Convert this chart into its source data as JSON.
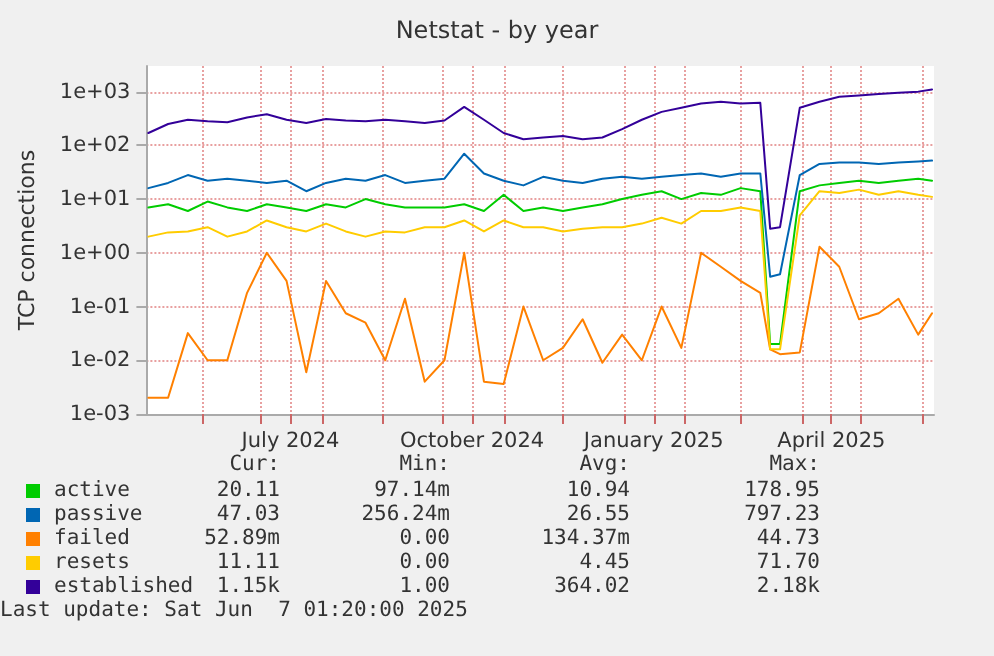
{
  "chart_data": {
    "type": "line",
    "title": "Netstat - by year",
    "ylabel": "TCP connections",
    "x": [
      "2024-05-05",
      "2024-05-15",
      "2024-05-25",
      "2024-06-04",
      "2024-06-14",
      "2024-06-24",
      "2024-07-04",
      "2024-07-14",
      "2024-07-24",
      "2024-08-03",
      "2024-08-13",
      "2024-08-23",
      "2024-09-02",
      "2024-09-12",
      "2024-09-22",
      "2024-10-02",
      "2024-10-12",
      "2024-10-22",
      "2024-11-01",
      "2024-11-11",
      "2024-11-21",
      "2024-12-01",
      "2024-12-11",
      "2024-12-21",
      "2024-12-31",
      "2025-01-10",
      "2025-01-20",
      "2025-01-30",
      "2025-02-09",
      "2025-02-19",
      "2025-03-01",
      "2025-03-11",
      "2025-03-16",
      "2025-03-21",
      "2025-03-31",
      "2025-04-10",
      "2025-04-20",
      "2025-04-30",
      "2025-05-10",
      "2025-05-20",
      "2025-05-30",
      "2025-06-06"
    ],
    "series": [
      {
        "name": "active",
        "color": "#00cc00",
        "values": [
          7,
          8,
          6,
          9,
          7,
          6,
          8,
          7,
          6,
          8,
          7,
          10,
          8,
          7,
          7,
          7,
          8,
          6,
          12,
          6,
          7,
          6,
          7,
          8,
          10,
          12,
          14,
          10,
          13,
          12,
          16,
          14,
          0.02,
          0.02,
          14,
          18,
          20,
          22,
          20,
          22,
          24,
          22
        ]
      },
      {
        "name": "passive",
        "color": "#0066b3",
        "values": [
          16,
          20,
          28,
          22,
          24,
          22,
          20,
          22,
          14,
          20,
          24,
          22,
          28,
          20,
          22,
          24,
          70,
          30,
          22,
          18,
          26,
          22,
          20,
          24,
          26,
          24,
          26,
          28,
          30,
          26,
          30,
          30,
          0.36,
          0.4,
          28,
          45,
          48,
          48,
          45,
          48,
          50,
          52
        ]
      },
      {
        "name": "failed",
        "color": "#ff8000",
        "values": [
          0.002,
          0.002,
          0.032,
          0.01,
          0.01,
          0.18,
          1,
          0.3,
          0.006,
          0.3,
          0.075,
          0.05,
          0.01,
          0.14,
          0.004,
          0.01,
          1,
          0.004,
          0.0036,
          0.1,
          0.01,
          0.017,
          0.058,
          0.009,
          0.03,
          0.01,
          0.1,
          0.017,
          1,
          0.55,
          0.3,
          0.18,
          0.016,
          0.013,
          0.014,
          1.3,
          0.55,
          0.058,
          0.075,
          0.14,
          0.03,
          0.075
        ]
      },
      {
        "name": "resets",
        "color": "#ffcc00",
        "values": [
          2,
          2.4,
          2.5,
          3,
          2,
          2.5,
          4,
          3,
          2.5,
          3.5,
          2.5,
          2,
          2.5,
          2.4,
          3,
          3,
          4,
          2.5,
          4,
          3,
          3,
          2.5,
          2.8,
          3,
          3,
          3.5,
          4.5,
          3.5,
          6,
          6,
          7,
          6,
          0.016,
          0.016,
          5,
          14,
          13,
          15,
          12,
          14,
          12,
          11
        ]
      },
      {
        "name": "established",
        "color": "#330099",
        "values": [
          170,
          250,
          300,
          280,
          270,
          330,
          380,
          300,
          260,
          310,
          290,
          280,
          300,
          280,
          260,
          290,
          520,
          300,
          170,
          130,
          140,
          150,
          130,
          140,
          200,
          300,
          420,
          500,
          600,
          650,
          600,
          620,
          2.8,
          3,
          500,
          650,
          800,
          850,
          900,
          950,
          1000,
          1100
        ]
      }
    ],
    "xlim": [
      "2024-05-04",
      "2025-06-07"
    ],
    "xticks": [
      {
        "value": "2024-06-01",
        "label": null
      },
      {
        "value": "2024-07-01",
        "label": null
      },
      {
        "value": "2024-07-16",
        "label": "July 2024"
      },
      {
        "value": "2024-08-01",
        "label": null
      },
      {
        "value": "2024-09-01",
        "label": null
      },
      {
        "value": "2024-10-01",
        "label": null
      },
      {
        "value": "2024-10-16",
        "label": "October 2024"
      },
      {
        "value": "2024-11-01",
        "label": null
      },
      {
        "value": "2024-12-01",
        "label": null
      },
      {
        "value": "2025-01-01",
        "label": null
      },
      {
        "value": "2025-01-16",
        "label": "January 2025"
      },
      {
        "value": "2025-02-01",
        "label": null
      },
      {
        "value": "2025-03-01",
        "label": null
      },
      {
        "value": "2025-04-01",
        "label": null
      },
      {
        "value": "2025-04-16",
        "label": "April 2025"
      },
      {
        "value": "2025-05-01",
        "label": null
      },
      {
        "value": "2025-06-01",
        "label": null
      }
    ],
    "ylim": [
      0.001,
      3000
    ],
    "yticks": [
      {
        "value": 0.001,
        "label": "1e-03"
      },
      {
        "value": 0.01,
        "label": "1e-02"
      },
      {
        "value": 0.1,
        "label": "1e-01"
      },
      {
        "value": 1,
        "label": "1e+00"
      },
      {
        "value": 10,
        "label": "1e+01"
      },
      {
        "value": 100,
        "label": "1e+02"
      },
      {
        "value": 1000,
        "label": "1e+03"
      }
    ],
    "log": "y",
    "grid": true,
    "legend": "bottom",
    "marker": "none",
    "line_style": "solid",
    "annotations": [
      "Cur:",
      "Min:",
      "Avg:",
      "Max:",
      "20.11",
      "97.14m",
      "10.94",
      "178.95",
      "47.03",
      "256.24m",
      "26.55",
      "797.23",
      "52.89m",
      "0.00",
      "134.37m",
      "44.73",
      "11.11",
      "0.00",
      "4.45",
      "71.70",
      "1.15k",
      "1.00",
      "364.02",
      "2.18k",
      "Last update: Sat Jun  7 01:20:00 2025"
    ]
  }
}
